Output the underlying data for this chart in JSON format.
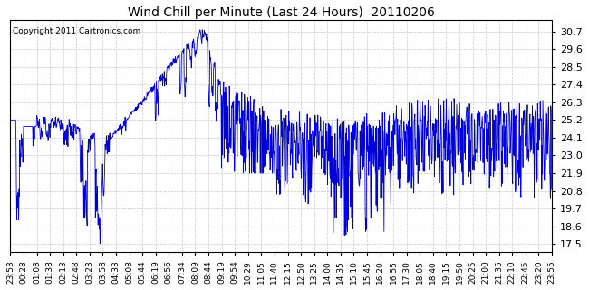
{
  "title": "Wind Chill per Minute (Last 24 Hours)  20110206",
  "copyright": "Copyright 2011 Cartronics.com",
  "line_color": "#0000dd",
  "bg_color": "#ffffff",
  "grid_color": "#bbbbbb",
  "yticks": [
    17.5,
    18.6,
    19.7,
    20.8,
    21.9,
    23.0,
    24.1,
    25.2,
    26.3,
    27.4,
    28.5,
    29.6,
    30.7
  ],
  "ylim": [
    17.0,
    31.4
  ],
  "xtick_labels": [
    "23:53",
    "00:28",
    "01:03",
    "01:38",
    "02:13",
    "02:48",
    "03:23",
    "03:58",
    "04:33",
    "05:08",
    "05:44",
    "06:19",
    "06:56",
    "07:34",
    "08:09",
    "08:44",
    "09:19",
    "09:54",
    "10:29",
    "11:05",
    "11:40",
    "12:15",
    "12:50",
    "13:25",
    "14:00",
    "14:35",
    "15:10",
    "15:45",
    "16:20",
    "16:55",
    "17:30",
    "18:05",
    "18:40",
    "19:15",
    "19:50",
    "20:25",
    "21:00",
    "21:35",
    "22:10",
    "22:45",
    "23:20",
    "23:55"
  ],
  "n_minutes": 1440
}
